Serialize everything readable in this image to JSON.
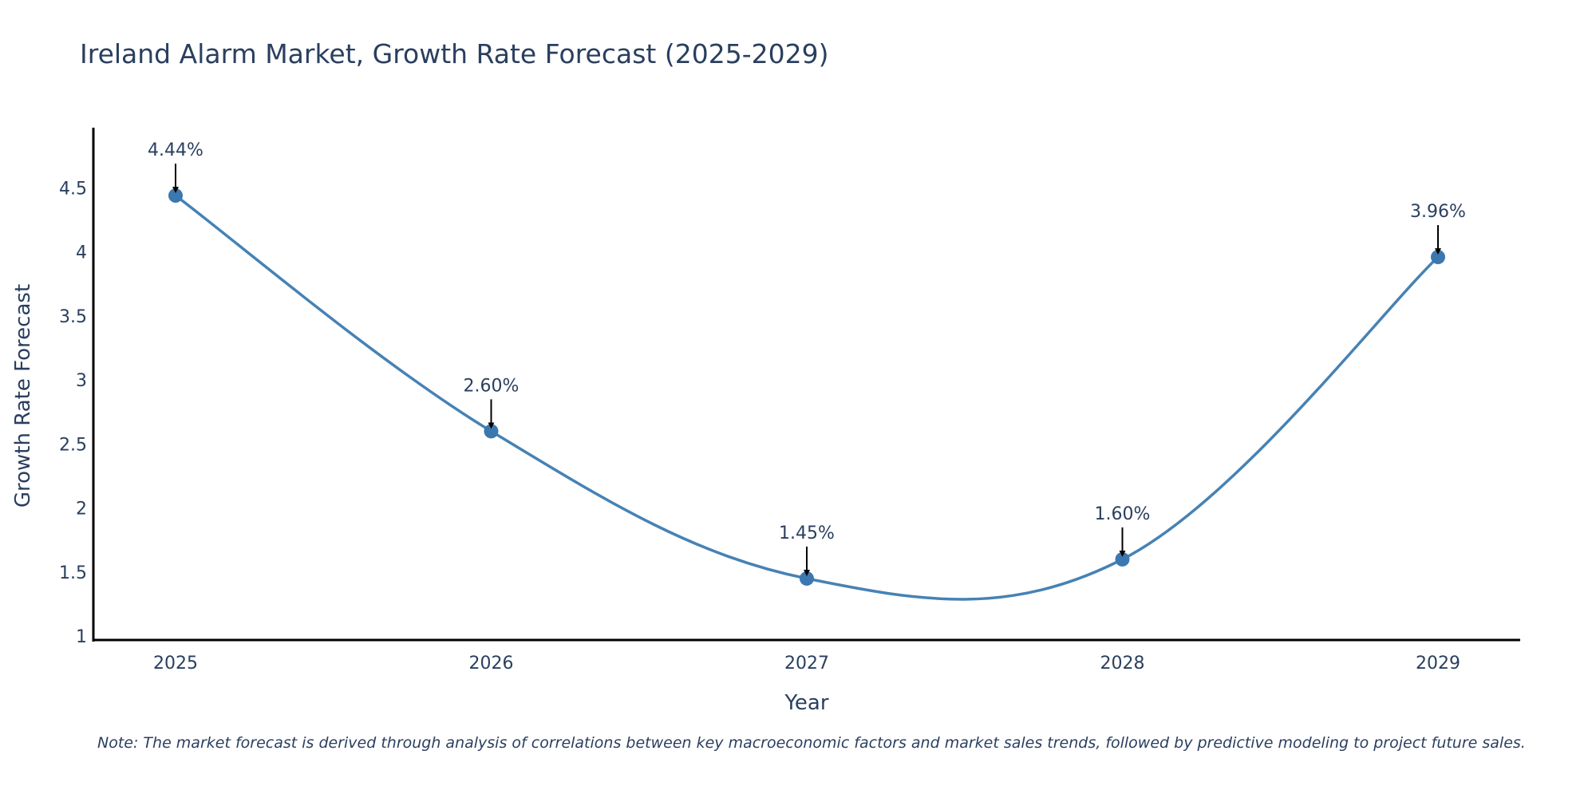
{
  "chart_data": {
    "type": "line",
    "title": "Ireland Alarm Market, Growth Rate Forecast (2025-2029)",
    "xlabel": "Year",
    "ylabel": "Growth Rate Forecast",
    "x": [
      "2025",
      "2026",
      "2027",
      "2028",
      "2029"
    ],
    "series": [
      {
        "name": "Growth Rate Forecast",
        "values": [
          4.44,
          2.6,
          1.45,
          1.6,
          3.96
        ]
      }
    ],
    "data_labels": [
      "4.44%",
      "2.60%",
      "1.45%",
      "1.60%",
      "3.96%"
    ],
    "y_ticks": [
      "1",
      "1.5",
      "2",
      "2.5",
      "3",
      "3.5",
      "4",
      "4.5"
    ],
    "ylim": [
      0.97,
      4.97
    ],
    "grid": false,
    "line_shape": "spline",
    "note": "Note: The market forecast is derived through analysis of correlations between key macroeconomic factors and market sales trends, followed by predictive modeling to project future sales."
  },
  "colors": {
    "line": "#4682B4",
    "marker": "#3b78b0",
    "arrow": "#000000",
    "axis": "#000000",
    "text": "#2a3f5f"
  }
}
